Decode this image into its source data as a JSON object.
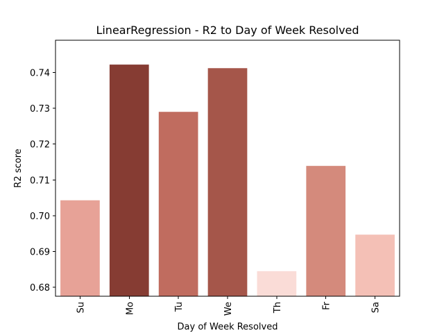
{
  "chart_data": {
    "type": "bar",
    "title": "LinearRegression - R2 to Day of Week Resolved",
    "xlabel": "Day of Week Resolved",
    "ylabel": "R2 score",
    "categories": [
      "Su",
      "Mo",
      "Tu",
      "We",
      "Th",
      "Fr",
      "Sa"
    ],
    "values": [
      0.7043,
      0.7422,
      0.729,
      0.7412,
      0.6845,
      0.7139,
      0.6947
    ],
    "colors": [
      "#e7a297",
      "#863c33",
      "#c06c5f",
      "#a5564a",
      "#fadcd7",
      "#d48a7c",
      "#f4c0b6"
    ],
    "ylim": [
      0.6775,
      0.749
    ],
    "yticks": [
      0.68,
      0.69,
      0.7,
      0.71,
      0.72,
      0.73,
      0.74
    ],
    "ytick_labels": [
      "0.68",
      "0.69",
      "0.70",
      "0.71",
      "0.72",
      "0.73",
      "0.74"
    ],
    "grid": false
  }
}
